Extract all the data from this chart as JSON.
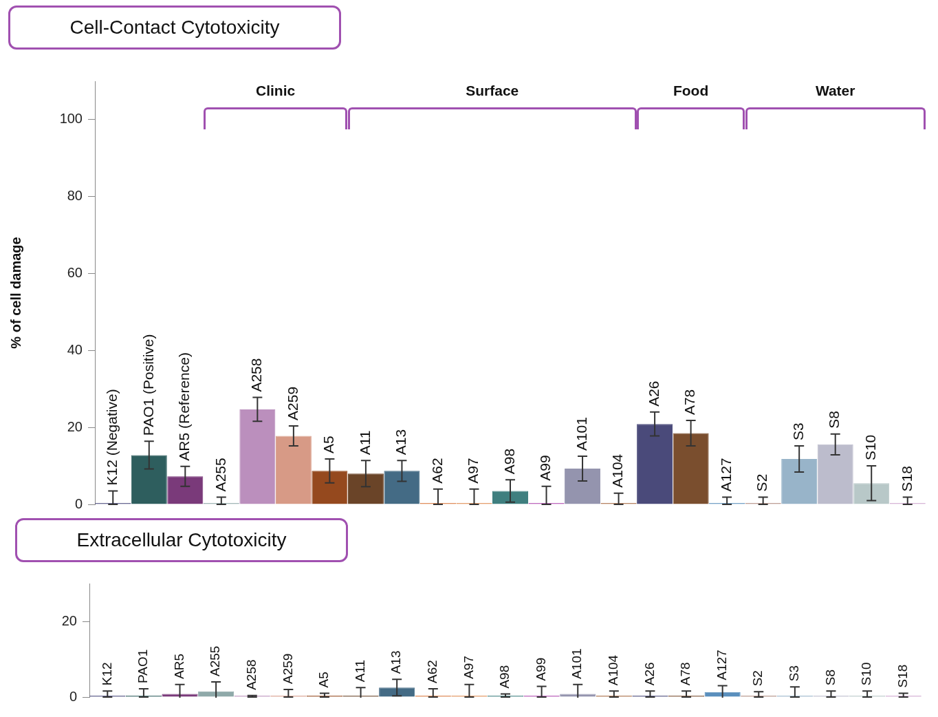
{
  "chart_data": [
    {
      "type": "bar",
      "title": "Cell-Contact Cytotoxicity",
      "ylabel": "% of cell damage",
      "categories": [
        "K12 (Negative)",
        "PAO1 (Positive)",
        "AR5 (Reference)",
        "A255",
        "A258",
        "A259",
        "A5",
        "A11",
        "A13",
        "A62",
        "A97",
        "A98",
        "A99",
        "A101",
        "A104",
        "A26",
        "A78",
        "A127",
        "S2",
        "S3",
        "S8",
        "S10",
        "S18"
      ],
      "values": [
        0,
        12.8,
        7.3,
        0,
        24.7,
        17.8,
        8.7,
        8.0,
        8.7,
        0,
        0,
        3.5,
        0,
        9.3,
        0,
        20.9,
        18.5,
        0,
        0,
        11.8,
        15.6,
        5.5,
        0
      ],
      "errors": [
        [
          0,
          3.5
        ],
        3.6,
        2.6,
        [
          0,
          1.9
        ],
        3.1,
        2.6,
        3.1,
        3.4,
        2.7,
        [
          0,
          4.0
        ],
        [
          0,
          4.0
        ],
        2.9,
        [
          0,
          4.7
        ],
        3.2,
        [
          0,
          2.9
        ],
        3.1,
        3.3,
        [
          0,
          1.9
        ],
        [
          0,
          1.9
        ],
        3.4,
        2.7,
        4.5,
        [
          0,
          1.9
        ]
      ],
      "colors": [
        "#4a4a7e",
        "#2e5e5e",
        "#7a3a7a",
        "#8fa9a9",
        "#bb8fbd",
        "#d79a86",
        "#95491e",
        "#6a4428",
        "#446b85",
        "#d97a3e",
        "#e08a50",
        "#3f7f7f",
        "#b04ab0",
        "#9494ae",
        "#a86a40",
        "#4a4a7a",
        "#7a4e2e",
        "#5a8fbd",
        "#b08a80",
        "#98b4c9",
        "#bcbccc",
        "#b8c8c8",
        "#d0a8d0"
      ],
      "ylim": [
        0,
        110
      ],
      "yticks": [
        0,
        20,
        40,
        60,
        80,
        100
      ],
      "grid": false,
      "legend": false,
      "annotations": [
        "Clinic",
        "Surface",
        "Food",
        "Water"
      ]
    },
    {
      "type": "bar",
      "title": "Extracellular Cytotoxicity",
      "categories": [
        "K12",
        "PAO1",
        "AR5",
        "A255",
        "A258",
        "A259",
        "A5",
        "A11",
        "A13",
        "A62",
        "A97",
        "A98",
        "A99",
        "A101",
        "A104",
        "A26",
        "A78",
        "A127",
        "S2",
        "S3",
        "S8",
        "S10",
        "S18"
      ],
      "values": [
        0,
        0,
        0.8,
        1.5,
        0,
        0,
        0,
        0.3,
        2.5,
        0,
        0,
        0,
        0,
        0.8,
        0,
        0,
        0,
        1.3,
        0,
        0,
        0,
        0,
        0
      ],
      "errors": [
        [
          0,
          1.6
        ],
        [
          0,
          2.2
        ],
        2.5,
        2.5,
        [
          0,
          0.4
        ],
        [
          0,
          2.0
        ],
        [
          0,
          1.0
        ],
        2.2,
        2.2,
        [
          0,
          2.2
        ],
        [
          0,
          3.3
        ],
        [
          0,
          0.8
        ],
        [
          0,
          2.8
        ],
        2.5,
        [
          0,
          1.6
        ],
        [
          0,
          1.6
        ],
        [
          0,
          1.6
        ],
        1.7,
        [
          0,
          1.4
        ],
        [
          0,
          2.7
        ],
        [
          0,
          1.6
        ],
        [
          0,
          1.6
        ],
        [
          0,
          1.0
        ]
      ],
      "colors": [
        "#4a4a7e",
        "#2e5e5e",
        "#7a3a7a",
        "#8fa9a9",
        "#bb8fbd",
        "#d79a86",
        "#95491e",
        "#6a4428",
        "#446b85",
        "#d97a3e",
        "#e08a50",
        "#3f7f7f",
        "#b04ab0",
        "#9494ae",
        "#a86a40",
        "#4a4a7a",
        "#7a4e2e",
        "#5a8fbd",
        "#b08a80",
        "#98b4c9",
        "#bcbccc",
        "#b8c8c8",
        "#d0a8d0"
      ],
      "ylim": [
        0,
        30
      ],
      "yticks": [
        0,
        20
      ],
      "grid": false,
      "legend": false
    }
  ]
}
